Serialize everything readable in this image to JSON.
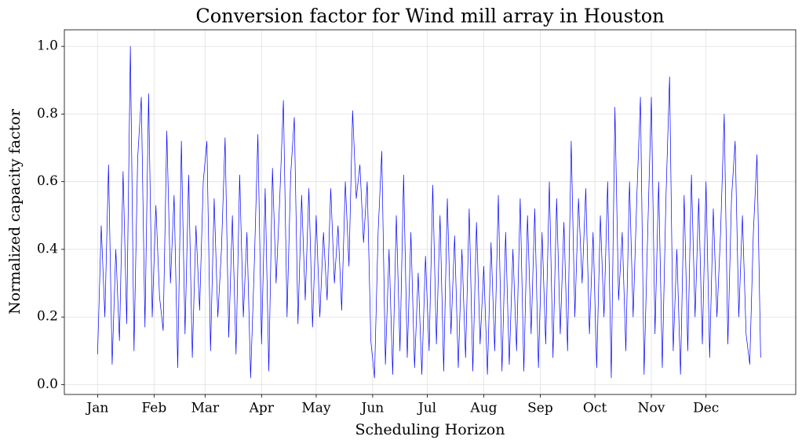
{
  "chart_data": {
    "type": "line",
    "title": "Conversion factor for Wind mill array in Houston",
    "x_label": "Scheduling Horizon",
    "y_label": "Normalized capacity factor",
    "color": "#0000ff",
    "grid": true,
    "xlim": [
      -18.25,
      383.25
    ],
    "ylim": [
      -0.029,
      1.049
    ],
    "xticks": [
      {
        "value": 0,
        "label": "Jan"
      },
      {
        "value": 31,
        "label": "Feb"
      },
      {
        "value": 59,
        "label": "Mar"
      },
      {
        "value": 90,
        "label": "Apr"
      },
      {
        "value": 120,
        "label": "May"
      },
      {
        "value": 151,
        "label": "Jun"
      },
      {
        "value": 181,
        "label": "Jul"
      },
      {
        "value": 212,
        "label": "Aug"
      },
      {
        "value": 243,
        "label": "Sep"
      },
      {
        "value": 273,
        "label": "Oct"
      },
      {
        "value": 304,
        "label": "Nov"
      },
      {
        "value": 334,
        "label": "Dec"
      }
    ],
    "yticks": [
      {
        "value": 0,
        "label": "0.0"
      },
      0.2,
      0.4,
      0.6,
      0.8,
      {
        "value": 1,
        "label": "1.0"
      }
    ],
    "x": [
      0,
      2,
      4,
      6,
      8,
      10,
      12,
      14,
      16,
      18,
      20,
      22,
      24,
      26,
      28,
      30,
      32,
      34,
      36,
      38,
      40,
      42,
      44,
      46,
      48,
      50,
      52,
      54,
      56,
      58,
      60,
      62,
      64,
      66,
      68,
      70,
      72,
      74,
      76,
      78,
      80,
      82,
      84,
      86,
      88,
      90,
      92,
      94,
      96,
      98,
      100,
      102,
      104,
      106,
      108,
      110,
      112,
      114,
      116,
      118,
      120,
      122,
      124,
      126,
      128,
      130,
      132,
      134,
      136,
      138,
      140,
      142,
      144,
      146,
      148,
      150,
      152,
      154,
      156,
      158,
      160,
      162,
      164,
      166,
      168,
      170,
      172,
      174,
      176,
      178,
      180,
      182,
      184,
      186,
      188,
      190,
      192,
      194,
      196,
      198,
      200,
      202,
      204,
      206,
      208,
      210,
      212,
      214,
      216,
      218,
      220,
      222,
      224,
      226,
      228,
      230,
      232,
      234,
      236,
      238,
      240,
      242,
      244,
      246,
      248,
      250,
      252,
      254,
      256,
      258,
      260,
      262,
      264,
      266,
      268,
      270,
      272,
      274,
      276,
      278,
      280,
      282,
      284,
      286,
      288,
      290,
      292,
      294,
      296,
      298,
      300,
      302,
      304,
      306,
      308,
      310,
      312,
      314,
      316,
      318,
      320,
      322,
      324,
      326,
      328,
      330,
      332,
      334,
      336,
      338,
      340,
      342,
      344,
      346,
      348,
      350,
      352,
      354,
      356,
      358,
      360,
      362,
      364
    ],
    "values": [
      0.09,
      0.47,
      0.2,
      0.65,
      0.06,
      0.4,
      0.13,
      0.63,
      0.18,
      1.0,
      0.1,
      0.67,
      0.85,
      0.17,
      0.86,
      0.2,
      0.53,
      0.26,
      0.16,
      0.75,
      0.3,
      0.56,
      0.05,
      0.72,
      0.15,
      0.62,
      0.08,
      0.47,
      0.22,
      0.6,
      0.72,
      0.1,
      0.55,
      0.2,
      0.4,
      0.73,
      0.14,
      0.5,
      0.09,
      0.62,
      0.2,
      0.45,
      0.02,
      0.35,
      0.74,
      0.12,
      0.58,
      0.04,
      0.64,
      0.3,
      0.55,
      0.84,
      0.2,
      0.62,
      0.79,
      0.18,
      0.56,
      0.25,
      0.58,
      0.17,
      0.5,
      0.2,
      0.45,
      0.25,
      0.58,
      0.3,
      0.47,
      0.22,
      0.6,
      0.35,
      0.81,
      0.55,
      0.65,
      0.42,
      0.6,
      0.13,
      0.02,
      0.45,
      0.69,
      0.06,
      0.4,
      0.03,
      0.5,
      0.1,
      0.62,
      0.08,
      0.45,
      0.05,
      0.33,
      0.03,
      0.38,
      0.1,
      0.59,
      0.12,
      0.5,
      0.04,
      0.55,
      0.15,
      0.44,
      0.05,
      0.4,
      0.08,
      0.52,
      0.04,
      0.48,
      0.12,
      0.35,
      0.03,
      0.42,
      0.1,
      0.56,
      0.04,
      0.45,
      0.06,
      0.4,
      0.1,
      0.55,
      0.04,
      0.5,
      0.15,
      0.52,
      0.05,
      0.45,
      0.12,
      0.6,
      0.08,
      0.55,
      0.15,
      0.48,
      0.1,
      0.72,
      0.2,
      0.55,
      0.3,
      0.58,
      0.15,
      0.45,
      0.05,
      0.5,
      0.2,
      0.6,
      0.02,
      0.82,
      0.25,
      0.45,
      0.1,
      0.6,
      0.2,
      0.55,
      0.85,
      0.03,
      0.45,
      0.85,
      0.15,
      0.6,
      0.05,
      0.55,
      0.91,
      0.1,
      0.4,
      0.03,
      0.56,
      0.1,
      0.62,
      0.2,
      0.55,
      0.12,
      0.6,
      0.08,
      0.52,
      0.2,
      0.45,
      0.8,
      0.12,
      0.55,
      0.72,
      0.2,
      0.5,
      0.15,
      0.06,
      0.45,
      0.68,
      0.08
    ]
  }
}
